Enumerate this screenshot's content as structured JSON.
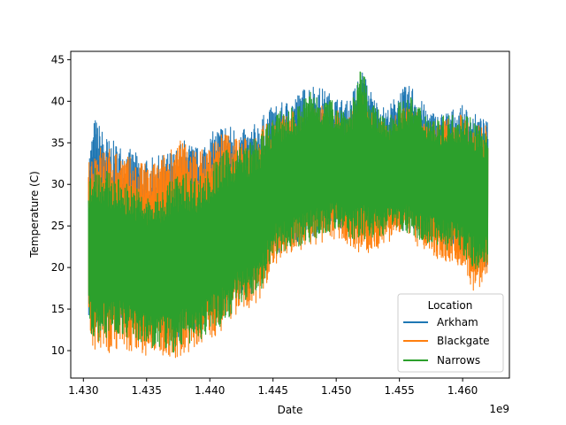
{
  "chart_data": {
    "type": "line",
    "xlabel": "Date",
    "ylabel": "Temperature (C)",
    "x_offset_label": "1e9",
    "xlim": [
      1.429,
      1.4637
    ],
    "ylim": [
      6.7,
      46.0
    ],
    "x_ticks": [
      1.43,
      1.435,
      1.44,
      1.445,
      1.45,
      1.455,
      1.46
    ],
    "x_tick_labels": [
      "1.430",
      "1.435",
      "1.440",
      "1.445",
      "1.450",
      "1.455",
      "1.460"
    ],
    "y_ticks": [
      10,
      15,
      20,
      25,
      30,
      35,
      40,
      45
    ],
    "y_tick_labels": [
      "10",
      "15",
      "20",
      "25",
      "30",
      "35",
      "40",
      "45"
    ],
    "grid": false,
    "legend": {
      "title": "Location",
      "placement": "lower-right"
    },
    "series": [
      {
        "name": "Arkham",
        "color": "#1f77b4",
        "x": [
          1.4304,
          1.4309,
          1.432,
          1.433,
          1.434,
          1.435,
          1.436,
          1.437,
          1.438,
          1.439,
          1.44,
          1.441,
          1.442,
          1.443,
          1.444,
          1.445,
          1.446,
          1.447,
          1.448,
          1.449,
          1.45,
          1.451,
          1.452,
          1.453,
          1.454,
          1.455,
          1.456,
          1.457,
          1.458,
          1.459,
          1.46,
          1.461,
          1.462
        ],
        "high": [
          33.5,
          38.2,
          35.5,
          34.8,
          34.0,
          33.0,
          33.5,
          34.0,
          35.5,
          34.5,
          36.0,
          37.5,
          37.0,
          36.5,
          38.0,
          39.5,
          40.0,
          41.0,
          42.3,
          41.5,
          40.5,
          40.0,
          44.0,
          40.5,
          39.0,
          41.5,
          42.0,
          39.5,
          38.5,
          39.0,
          39.5,
          38.5,
          37.5
        ],
        "low": [
          14.0,
          13.0,
          12.5,
          13.5,
          12.0,
          11.5,
          12.0,
          11.0,
          11.5,
          12.5,
          13.5,
          14.5,
          15.5,
          16.5,
          17.5,
          21.0,
          22.5,
          23.0,
          23.5,
          24.5,
          25.0,
          24.0,
          24.0,
          24.5,
          25.0,
          24.5,
          24.0,
          23.5,
          23.0,
          22.5,
          22.0,
          20.5,
          20.0
        ]
      },
      {
        "name": "Blackgate",
        "color": "#ff7f0e",
        "x": [
          1.4304,
          1.4309,
          1.432,
          1.433,
          1.434,
          1.435,
          1.436,
          1.437,
          1.438,
          1.439,
          1.44,
          1.441,
          1.442,
          1.443,
          1.444,
          1.445,
          1.446,
          1.447,
          1.448,
          1.449,
          1.45,
          1.451,
          1.452,
          1.453,
          1.454,
          1.455,
          1.456,
          1.457,
          1.458,
          1.459,
          1.46,
          1.461,
          1.462
        ],
        "high": [
          32.5,
          35.0,
          34.5,
          34.0,
          33.0,
          32.5,
          33.0,
          35.0,
          35.5,
          34.0,
          35.0,
          36.5,
          36.0,
          35.5,
          37.0,
          38.0,
          38.5,
          39.0,
          40.0,
          39.5,
          39.0,
          38.0,
          41.0,
          38.5,
          37.5,
          39.0,
          39.5,
          38.0,
          37.5,
          38.0,
          38.5,
          37.5,
          37.0
        ],
        "low": [
          12.0,
          8.5,
          9.5,
          10.5,
          9.5,
          9.0,
          9.5,
          9.0,
          9.5,
          10.0,
          11.0,
          12.5,
          14.0,
          15.0,
          16.0,
          20.0,
          21.5,
          22.0,
          22.5,
          23.0,
          23.5,
          22.5,
          21.5,
          22.0,
          23.0,
          23.5,
          23.0,
          22.0,
          21.0,
          20.5,
          20.0,
          16.5,
          19.5
        ]
      },
      {
        "name": "Narrows",
        "color": "#2ca02c",
        "x": [
          1.4304,
          1.4309,
          1.432,
          1.433,
          1.434,
          1.435,
          1.436,
          1.437,
          1.438,
          1.439,
          1.44,
          1.441,
          1.442,
          1.443,
          1.444,
          1.445,
          1.446,
          1.447,
          1.448,
          1.449,
          1.45,
          1.451,
          1.452,
          1.453,
          1.454,
          1.455,
          1.456,
          1.457,
          1.458,
          1.459,
          1.46,
          1.461,
          1.462
        ],
        "high": [
          30.5,
          33.0,
          31.5,
          30.5,
          30.0,
          28.5,
          29.0,
          31.0,
          31.5,
          31.0,
          32.0,
          34.0,
          34.5,
          35.0,
          36.0,
          38.5,
          39.0,
          39.5,
          41.5,
          40.5,
          40.0,
          39.0,
          44.1,
          39.5,
          38.0,
          40.0,
          40.5,
          39.0,
          38.0,
          38.5,
          39.0,
          38.0,
          36.0
        ],
        "low": [
          13.0,
          11.0,
          11.5,
          12.0,
          11.0,
          10.5,
          10.0,
          9.5,
          10.5,
          11.0,
          12.0,
          13.0,
          15.0,
          16.0,
          17.0,
          21.5,
          22.0,
          22.5,
          23.0,
          24.0,
          24.5,
          23.5,
          23.0,
          23.5,
          24.0,
          24.5,
          24.0,
          23.0,
          22.5,
          22.0,
          21.5,
          19.5,
          20.5
        ]
      }
    ]
  }
}
